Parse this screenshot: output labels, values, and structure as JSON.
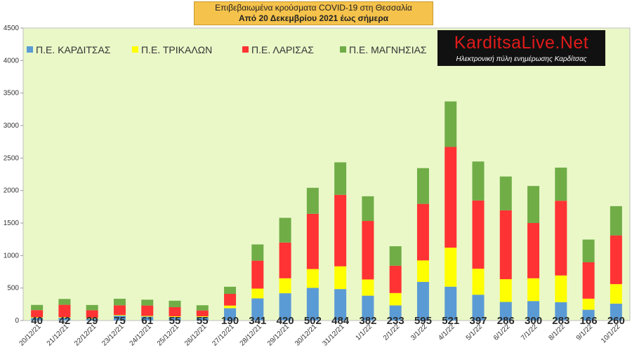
{
  "title": {
    "line1": "Επιβεβαιωμένα κρούσματα COVID-19 στη Θεσσαλία",
    "line2": "Από 20 Δεκεμβρίου 2021 έως σήμερα"
  },
  "logo": {
    "text": "KarditsaLive.Net",
    "subtitle": "Ηλεκτρονική πύλη ενημέρωσης Καρδίτσας"
  },
  "colors": {
    "plot_background": "#eaf8c8",
    "karditsa": "#5b9bd5",
    "trikala": "#ffff00",
    "larisa": "#ff3333",
    "magnisia": "#70ad47",
    "title_box": "#f5c24b"
  },
  "chart_data": {
    "type": "bar",
    "stacked": true,
    "categories": [
      "20/12/21",
      "21/12/21",
      "22/12/21",
      "23/12/21",
      "24/12/21",
      "25/12/21",
      "26/12/21",
      "27/12/21",
      "28/12/21",
      "29/12/21",
      "30/12/21",
      "31/12/21",
      "1/1/22",
      "2/1/22",
      "3/1/22",
      "4/1/22",
      "5/1/22",
      "6/1/22",
      "7/1/22",
      "8/1/22",
      "9/1/22",
      "10/1/22"
    ],
    "series": [
      {
        "name": "Π.Ε. ΚΑΡΔΙΤΣΑΣ",
        "values": [
          40,
          42,
          29,
          75,
          61,
          55,
          55,
          190,
          341,
          420,
          502,
          484,
          382,
          233,
          595,
          521,
          397,
          286,
          300,
          283,
          166,
          260
        ]
      },
      {
        "name": "Π.Ε. ΤΡΙΚΑΛΩΝ",
        "values": [
          10,
          10,
          10,
          10,
          10,
          10,
          10,
          40,
          150,
          230,
          290,
          350,
          250,
          190,
          330,
          600,
          400,
          350,
          350,
          410,
          170,
          300
        ]
      },
      {
        "name": "Π.Ε. ΛΑΡΙΣΑΣ",
        "values": [
          110,
          190,
          120,
          150,
          160,
          140,
          90,
          180,
          430,
          550,
          850,
          1100,
          900,
          420,
          870,
          1550,
          1050,
          1060,
          850,
          1150,
          560,
          750
        ]
      },
      {
        "name": "Π.Ε. ΜΑΓΝΗΣΙΑΣ",
        "values": [
          80,
          90,
          80,
          100,
          90,
          100,
          80,
          110,
          250,
          380,
          400,
          500,
          380,
          300,
          550,
          700,
          600,
          520,
          570,
          510,
          350,
          450
        ]
      }
    ],
    "data_labels": [
      "40",
      "42",
      "29",
      "75",
      "61",
      "55",
      "55",
      "190",
      "341",
      "420",
      "502",
      "484",
      "382",
      "233",
      "595",
      "521",
      "397",
      "286",
      "300",
      "283",
      "166",
      "260"
    ],
    "yticks": [
      "0",
      "500",
      "1000",
      "1500",
      "2000",
      "2500",
      "3000",
      "3500",
      "4000",
      "4500"
    ],
    "ylim": [
      0,
      4500
    ],
    "grid": false,
    "legend_position": "top"
  }
}
